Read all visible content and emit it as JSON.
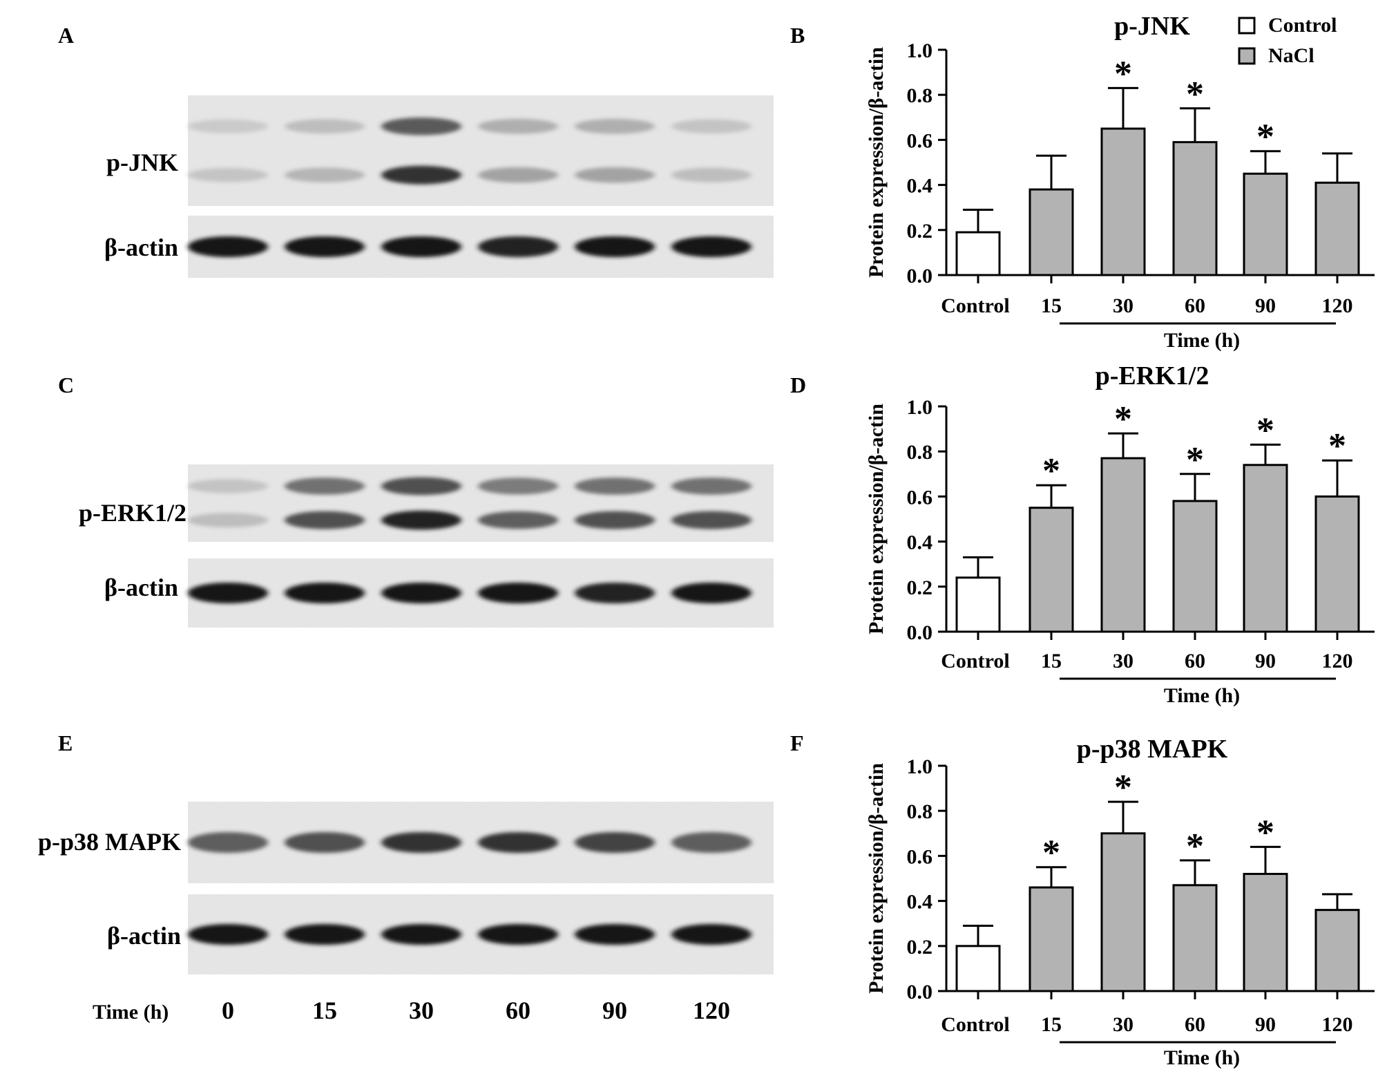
{
  "panels": {
    "A": {
      "letter": "A",
      "bands": [
        {
          "label": "p-JNK",
          "intensities": [
            0.25,
            0.35,
            0.9,
            0.45,
            0.45,
            0.3
          ],
          "double": true
        },
        {
          "label": "β-actin",
          "intensities": [
            1,
            1,
            1,
            0.95,
            1,
            1
          ],
          "double": false
        }
      ]
    },
    "C": {
      "letter": "C",
      "bands": [
        {
          "label": "p-ERK1/2",
          "intensities": [
            0.3,
            0.8,
            0.95,
            0.75,
            0.8,
            0.8
          ],
          "double": true
        },
        {
          "label": "β-actin",
          "intensities": [
            1,
            1,
            1,
            1,
            0.95,
            1
          ],
          "double": false
        }
      ]
    },
    "E": {
      "letter": "E",
      "bands": [
        {
          "label": "p-p38 MAPK",
          "intensities": [
            0.75,
            0.8,
            0.9,
            0.9,
            0.85,
            0.75
          ],
          "double": false
        },
        {
          "label": "β-actin",
          "intensities": [
            1,
            1,
            1,
            1,
            1,
            1
          ],
          "double": false
        }
      ],
      "time_label": "Time (h)",
      "time_values": [
        "0",
        "15",
        "30",
        "60",
        "90",
        "120"
      ]
    }
  },
  "legend": [
    {
      "label": "Control",
      "fill": "#ffffff"
    },
    {
      "label": "NaCl",
      "fill": "#b3b3b3"
    }
  ],
  "chart_data": [
    {
      "panel": "B",
      "type": "bar",
      "title": "p-JNK",
      "ylabel": "Protein expression/β-actin",
      "xlabel": "Time (h)",
      "categories": [
        "Control",
        "15",
        "30",
        "60",
        "90",
        "120"
      ],
      "values": [
        0.19,
        0.38,
        0.65,
        0.59,
        0.45,
        0.41
      ],
      "errors": [
        0.1,
        0.15,
        0.18,
        0.15,
        0.1,
        0.13
      ],
      "significant": [
        false,
        false,
        true,
        true,
        true,
        false
      ],
      "significance_marker": "*",
      "ylim": [
        0,
        1.0
      ],
      "yticks": [
        "0.0",
        "0.2",
        "0.4",
        "0.6",
        "0.8",
        "1.0"
      ]
    },
    {
      "panel": "D",
      "type": "bar",
      "title": "p-ERK1/2",
      "ylabel": "Protein expression/β-actin",
      "xlabel": "Time (h)",
      "categories": [
        "Control",
        "15",
        "30",
        "60",
        "90",
        "120"
      ],
      "values": [
        0.24,
        0.55,
        0.77,
        0.58,
        0.74,
        0.6
      ],
      "errors": [
        0.09,
        0.1,
        0.11,
        0.12,
        0.09,
        0.16
      ],
      "significant": [
        false,
        true,
        true,
        true,
        true,
        true
      ],
      "significance_marker": "*",
      "ylim": [
        0,
        1.0
      ],
      "yticks": [
        "0.0",
        "0.2",
        "0.4",
        "0.6",
        "0.8",
        "1.0"
      ]
    },
    {
      "panel": "F",
      "type": "bar",
      "title": "p-p38 MAPK",
      "ylabel": "Protein expression/β-actin",
      "xlabel": "Time (h)",
      "categories": [
        "Control",
        "15",
        "30",
        "60",
        "90",
        "120"
      ],
      "values": [
        0.2,
        0.46,
        0.7,
        0.47,
        0.52,
        0.36
      ],
      "errors": [
        0.09,
        0.09,
        0.14,
        0.11,
        0.12,
        0.07
      ],
      "significant": [
        false,
        true,
        true,
        true,
        true,
        false
      ],
      "significance_marker": "*",
      "ylim": [
        0,
        1.0
      ],
      "yticks": [
        "0.0",
        "0.2",
        "0.4",
        "0.6",
        "0.8",
        "1.0"
      ]
    }
  ]
}
